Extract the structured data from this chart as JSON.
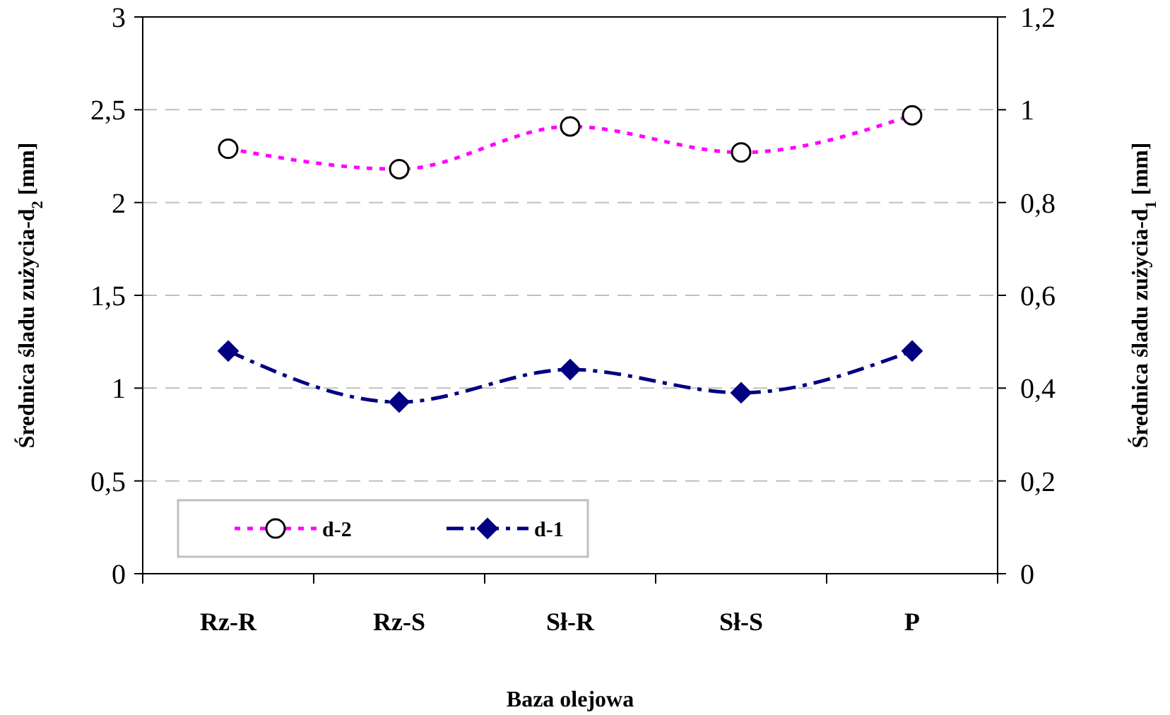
{
  "chart_data": {
    "type": "line",
    "xlabel": "Baza olejowa",
    "ylabel": "Średnica śladu zużycia-d$_{2}$ [mm]",
    "y2label": "Średnica śladu zużycia-d$_{1}$ [mm]",
    "categories": [
      "Rz-R",
      "Rz-S",
      "Sł-R",
      "Sł-S",
      "P"
    ],
    "series": [
      {
        "name": "d-2",
        "color": "#ff00ff",
        "values": [
          2.29,
          2.18,
          2.41,
          2.27,
          2.47
        ],
        "marker": "circle",
        "line_style": "dotted"
      },
      {
        "name": "d-1",
        "color": "#000080",
        "values": [
          0.48,
          0.37,
          0.44,
          0.39,
          0.48
        ],
        "marker": "diamond",
        "line_style": "dashed",
        "axis": "y2"
      }
    ],
    "ylim": [
      0,
      3
    ],
    "yticks": [
      0,
      {
        "value": 0.5,
        "label": "0,5"
      },
      1,
      {
        "value": 1.5,
        "label": "1,5"
      },
      2,
      {
        "value": 2.5,
        "label": "2,5"
      },
      3
    ],
    "y2lim": [
      0,
      1.2
    ],
    "y2ticks": [
      0,
      {
        "value": 0.2,
        "label": "0,2"
      },
      {
        "value": 0.4,
        "label": "0,4"
      },
      {
        "value": 0.6,
        "label": "0,6"
      },
      {
        "value": 0.8,
        "label": "0,8"
      },
      1,
      {
        "value": 1.2,
        "label": "1,2"
      }
    ],
    "grid": "y",
    "legend": "bottom left"
  }
}
